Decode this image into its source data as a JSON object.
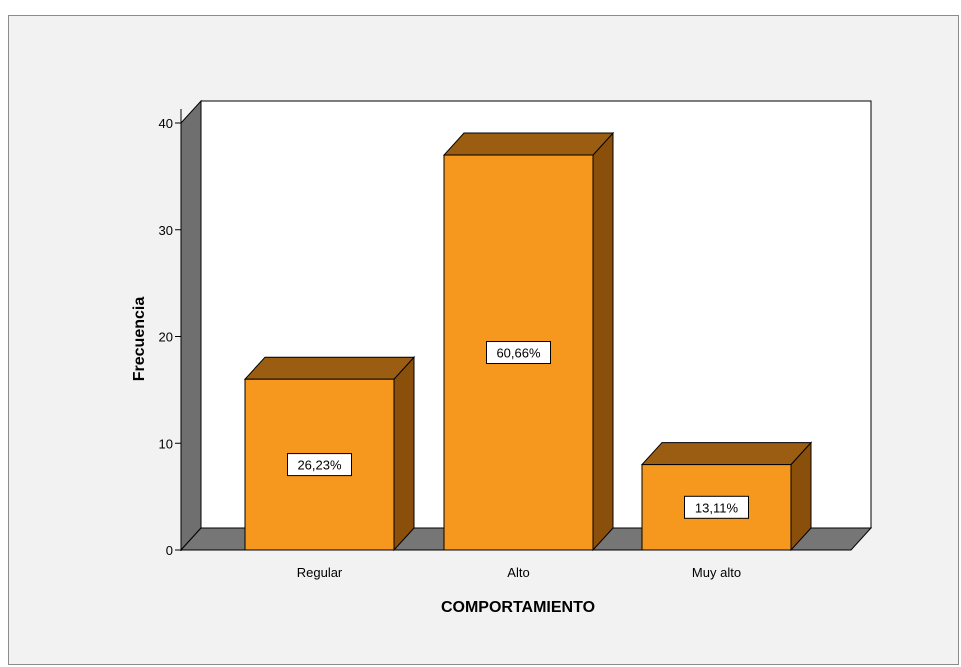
{
  "chart_data": {
    "type": "bar",
    "categories": [
      "Regular",
      "Alto",
      "Muy alto"
    ],
    "values": [
      16,
      37,
      8
    ],
    "data_labels": [
      "26,23%",
      "60,66%",
      "13,11%"
    ],
    "xlabel": "COMPORTAMIENTO",
    "ylabel": "Frecuencia",
    "ylim": [
      0,
      40
    ],
    "yticks": [
      "0",
      "10",
      "20",
      "30",
      "40"
    ],
    "grid": false,
    "style": "3d",
    "colors": {
      "bar_front": "#f7981e",
      "bar_top": "#9a5d12",
      "bar_side": "#8b4f0c",
      "wall_side": "#6f6f6f",
      "floor": "#767676",
      "plot_back": "#ffffff",
      "frame_background": "#f2f2f2"
    }
  }
}
